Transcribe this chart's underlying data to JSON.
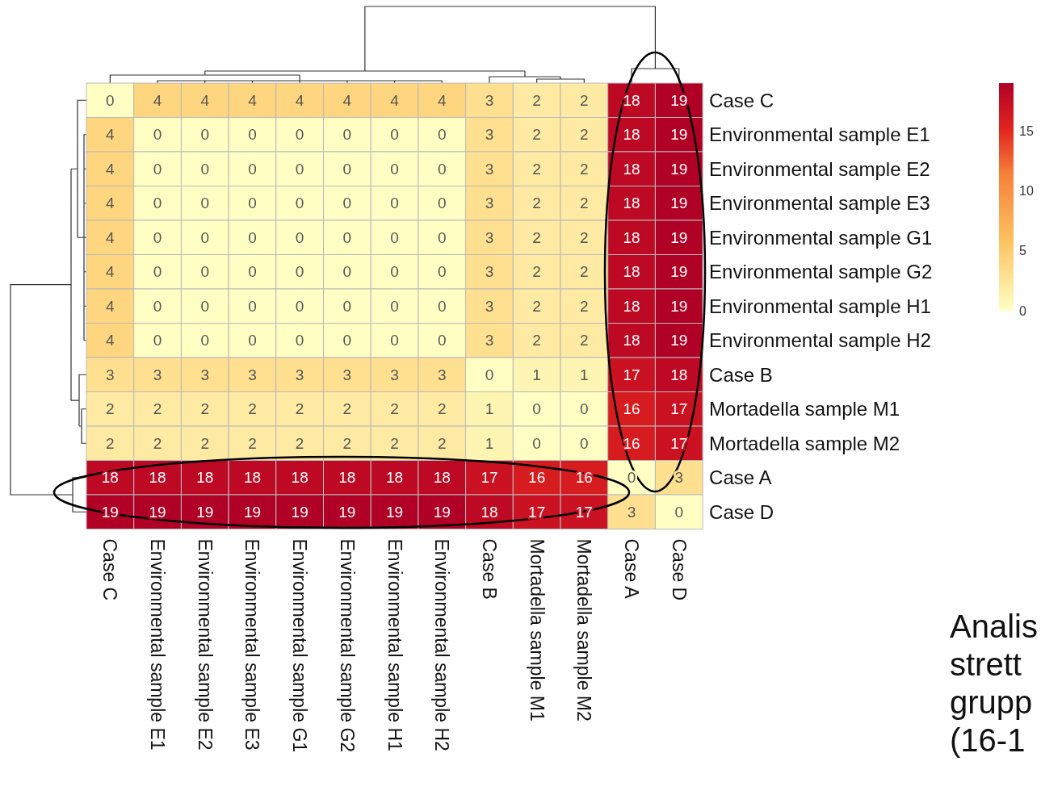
{
  "chart_data": {
    "type": "heatmap",
    "categories": [
      "Case C",
      "Environmental sample E1",
      "Environmental sample E2",
      "Environmental sample E3",
      "Environmental sample G1",
      "Environmental sample G2",
      "Environmental sample H1",
      "Environmental sample H2",
      "Case B",
      "Mortadella sample M1",
      "Mortadella sample M2",
      "Case A",
      "Case D"
    ],
    "y_categories": [
      "Case C",
      "Environmental sample E1",
      "Environmental sample E2",
      "Environmental sample E3",
      "Environmental sample G1",
      "Environmental sample G2",
      "Environmental sample H1",
      "Environmental sample H2",
      "Case B",
      "Mortadella sample M1",
      "Mortadella sample M2",
      "Case A",
      "Case D"
    ],
    "cells": [
      [
        0,
        4,
        4,
        4,
        4,
        4,
        4,
        4,
        3,
        2,
        2,
        18,
        19
      ],
      [
        4,
        0,
        0,
        0,
        0,
        0,
        0,
        0,
        3,
        2,
        2,
        18,
        19
      ],
      [
        4,
        0,
        0,
        0,
        0,
        0,
        0,
        0,
        3,
        2,
        2,
        18,
        19
      ],
      [
        4,
        0,
        0,
        0,
        0,
        0,
        0,
        0,
        3,
        2,
        2,
        18,
        19
      ],
      [
        4,
        0,
        0,
        0,
        0,
        0,
        0,
        0,
        3,
        2,
        2,
        18,
        19
      ],
      [
        4,
        0,
        0,
        0,
        0,
        0,
        0,
        0,
        3,
        2,
        2,
        18,
        19
      ],
      [
        4,
        0,
        0,
        0,
        0,
        0,
        0,
        0,
        3,
        2,
        2,
        18,
        19
      ],
      [
        4,
        0,
        0,
        0,
        0,
        0,
        0,
        0,
        3,
        2,
        2,
        18,
        19
      ],
      [
        3,
        3,
        3,
        3,
        3,
        3,
        3,
        3,
        0,
        1,
        1,
        17,
        18
      ],
      [
        2,
        2,
        2,
        2,
        2,
        2,
        2,
        2,
        1,
        0,
        0,
        16,
        17
      ],
      [
        2,
        2,
        2,
        2,
        2,
        2,
        2,
        2,
        1,
        0,
        0,
        16,
        17
      ],
      [
        18,
        18,
        18,
        18,
        18,
        18,
        18,
        18,
        17,
        16,
        16,
        0,
        3
      ],
      [
        19,
        19,
        19,
        19,
        19,
        19,
        19,
        19,
        18,
        17,
        17,
        3,
        0
      ]
    ],
    "data_labels": true,
    "clim": [
      0,
      19
    ],
    "cticks": [
      0,
      5,
      10,
      15
    ],
    "annotations": [
      "Analis",
      "strett",
      "grupp",
      "(16-1"
    ]
  }
}
